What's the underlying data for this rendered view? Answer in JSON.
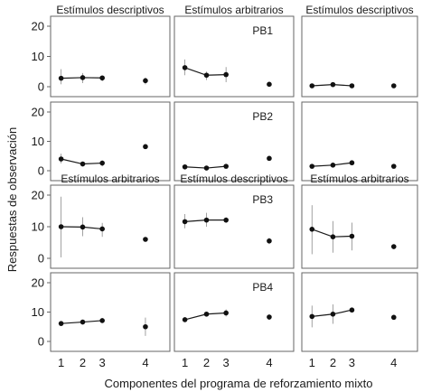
{
  "chart_data": {
    "type": "scatter",
    "xlabel": "Componentes del programa de reforzamiento mixto",
    "ylabel": "Respuestas de observación",
    "x_ticks": [
      "1",
      "2",
      "3",
      "4"
    ],
    "y_ticks": [
      "0",
      "10",
      "20"
    ],
    "ylim": [
      0,
      20
    ],
    "grid": false,
    "rows": [
      {
        "participant": "PB1",
        "panels": [
          {
            "title": "Estímulos descriptivos",
            "values": [
              2.8,
              3.0,
              2.9,
              2.0
            ],
            "err_low": [
              0.8,
              1.2,
              1.8,
              0.8
            ],
            "err_high": [
              5.8,
              4.5,
              3.5,
              3.0
            ]
          },
          {
            "title": "Estímulos arbitrarios",
            "values": [
              6.3,
              3.8,
              4.0,
              0.8
            ],
            "err_low": [
              3.8,
              2.2,
              1.5,
              0.5
            ],
            "err_high": [
              9.0,
              5.0,
              6.5,
              1.1
            ]
          },
          {
            "title": "Estímulos descriptivos",
            "values": [
              0.3,
              0.7,
              0.3,
              0.3
            ],
            "err_low": [
              0.0,
              0.4,
              0.1,
              0.1
            ],
            "err_high": [
              0.6,
              1.0,
              0.5,
              0.5
            ]
          }
        ]
      },
      {
        "participant": "PB2",
        "panels": [
          {
            "title": "",
            "values": [
              4.0,
              2.3,
              2.6,
              8.2
            ],
            "err_low": [
              2.5,
              1.5,
              1.5,
              8.0
            ],
            "err_high": [
              5.8,
              3.0,
              3.5,
              8.4
            ]
          },
          {
            "title": "",
            "values": [
              1.3,
              0.9,
              1.5,
              4.2
            ],
            "err_low": [
              1.0,
              0.6,
              1.0,
              3.6
            ],
            "err_high": [
              1.6,
              1.2,
              2.0,
              4.8
            ]
          },
          {
            "title": "",
            "values": [
              1.5,
              1.9,
              2.7,
              1.5
            ],
            "err_low": [
              1.2,
              1.5,
              2.2,
              1.2
            ],
            "err_high": [
              1.8,
              2.3,
              3.3,
              1.8
            ]
          }
        ]
      },
      {
        "participant": "PB3",
        "panels": [
          {
            "title": "Estímulos arbitrarios",
            "values": [
              10.0,
              9.9,
              9.3,
              6.0
            ],
            "err_low": [
              0.3,
              7.0,
              6.8,
              5.5
            ],
            "err_high": [
              19.5,
              13.0,
              11.2,
              6.5
            ]
          },
          {
            "title": "Estímulos descriptivos",
            "values": [
              11.6,
              12.1,
              12.1,
              5.5
            ],
            "err_low": [
              9.5,
              10.0,
              11.2,
              4.5
            ],
            "err_high": [
              14.0,
              14.4,
              13.0,
              6.5
            ]
          },
          {
            "title": "Estímulos arbitrarios",
            "values": [
              9.2,
              6.8,
              7.0,
              3.7
            ],
            "err_low": [
              1.3,
              1.8,
              2.5,
              3.2
            ],
            "err_high": [
              16.8,
              11.8,
              11.3,
              4.2
            ]
          }
        ]
      },
      {
        "participant": "PB4",
        "panels": [
          {
            "title": "",
            "values": [
              6.1,
              6.6,
              7.1,
              5.0
            ],
            "err_low": [
              5.5,
              5.8,
              6.3,
              1.9
            ],
            "err_high": [
              6.7,
              7.4,
              7.9,
              8.1
            ]
          },
          {
            "title": "",
            "values": [
              7.4,
              9.3,
              9.7,
              8.3
            ],
            "err_low": [
              6.6,
              8.5,
              8.5,
              7.3
            ],
            "err_high": [
              8.2,
              10.1,
              10.9,
              9.3
            ]
          },
          {
            "title": "",
            "values": [
              8.5,
              9.3,
              10.7,
              8.2
            ],
            "err_low": [
              4.8,
              6.0,
              10.0,
              7.6
            ],
            "err_high": [
              12.2,
              12.6,
              11.4,
              8.8
            ]
          }
        ]
      }
    ]
  }
}
